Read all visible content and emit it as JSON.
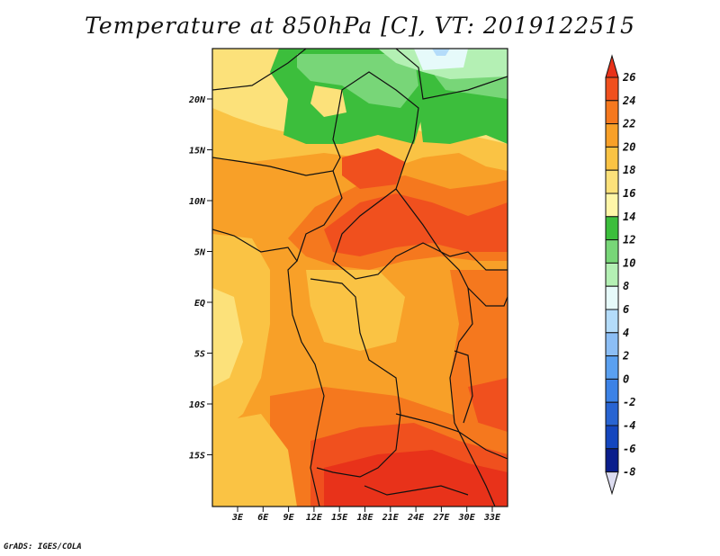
{
  "title": "Temperature at 850hPa [C], VT: 2019122515",
  "footer": "GrADS: IGES/COLA",
  "map": {
    "lat_labels": [
      "20N",
      "15N",
      "10N",
      "5N",
      "EQ",
      "5S",
      "10S",
      "15S"
    ],
    "lon_labels": [
      "3E",
      "6E",
      "9E",
      "12E",
      "15E",
      "18E",
      "21E",
      "24E",
      "27E",
      "30E",
      "33E"
    ]
  },
  "colorbar": {
    "labels": [
      "26",
      "24",
      "22",
      "20",
      "18",
      "16",
      "14",
      "12",
      "10",
      "8",
      "6",
      "4",
      "2",
      "0",
      "-2",
      "-4",
      "-6",
      "-8"
    ],
    "colors": [
      "#e8321a",
      "#f0501e",
      "#f5781e",
      "#f8a028",
      "#fac344",
      "#fce17a",
      "#fff6a8",
      "#3cbe3c",
      "#78d678",
      "#b4f0b4",
      "#e6fafa",
      "#b4dcfa",
      "#8cbef5",
      "#5aa0f0",
      "#3c82e6",
      "#2864d2",
      "#1446be",
      "#0a1e8c",
      "#dcdcf0"
    ]
  }
}
